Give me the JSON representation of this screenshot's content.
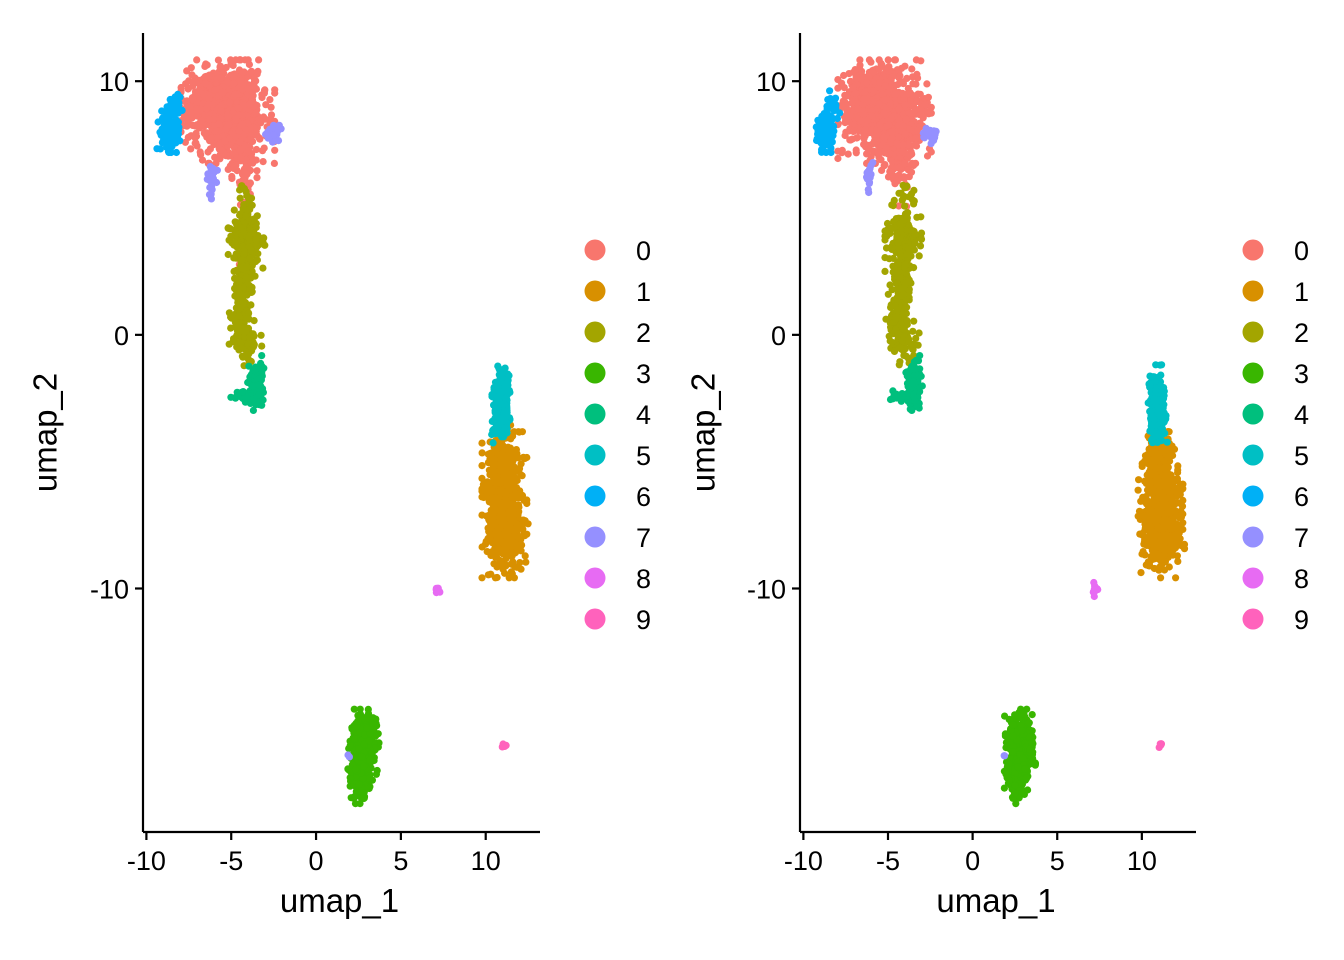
{
  "chart_data": [
    {
      "type": "scatter",
      "title": "",
      "xlabel": "umap_1",
      "ylabel": "umap_2",
      "xlim": [
        -10.2,
        13.2
      ],
      "ylim": [
        -19.6,
        11.9
      ],
      "xticks": [
        -10,
        -5,
        0,
        5,
        10
      ],
      "yticks": [
        -10,
        0,
        10
      ],
      "xtick_labels": [
        "-10",
        "-5",
        "0",
        "5",
        "10"
      ],
      "ytick_labels": [
        "-10",
        "0",
        "10"
      ],
      "legend_title": "",
      "legend_position": "right",
      "clusters": [
        {
          "name": "0",
          "color": "#F8766D",
          "blobs": [
            {
              "cx": -5.2,
              "cy": 8.8,
              "sx": 1.15,
              "sy": 0.85,
              "n": 700
            },
            {
              "cx": -6.3,
              "cy": 9.2,
              "sx": 0.6,
              "sy": 0.6,
              "n": 220
            },
            {
              "cx": -4.6,
              "cy": 7.8,
              "sx": 0.5,
              "sy": 0.7,
              "n": 160
            },
            {
              "cx": -4.2,
              "cy": 6.8,
              "sx": 0.3,
              "sy": 0.5,
              "n": 50
            },
            {
              "cx": -4.0,
              "cy": 4.5,
              "sx": 0.3,
              "sy": 1.0,
              "n": 8
            }
          ]
        },
        {
          "name": "1",
          "color": "#D89000",
          "blobs": [
            {
              "cx": 11.1,
              "cy": -6.7,
              "sx": 0.55,
              "sy": 1.2,
              "n": 520
            },
            {
              "cx": 11.0,
              "cy": -5.0,
              "sx": 0.35,
              "sy": 0.6,
              "n": 110
            },
            {
              "cx": 11.2,
              "cy": -7.9,
              "sx": 0.55,
              "sy": 0.45,
              "n": 150
            }
          ]
        },
        {
          "name": "2",
          "color": "#A3A500",
          "blobs": [
            {
              "cx": -4.1,
              "cy": 3.7,
              "sx": 0.45,
              "sy": 0.5,
              "n": 170
            },
            {
              "cx": -4.2,
              "cy": 2.3,
              "sx": 0.25,
              "sy": 0.7,
              "n": 110
            },
            {
              "cx": -4.4,
              "cy": 0.6,
              "sx": 0.3,
              "sy": 0.6,
              "n": 110
            },
            {
              "cx": -4.0,
              "cy": -0.4,
              "sx": 0.35,
              "sy": 0.4,
              "n": 40
            },
            {
              "cx": -4.1,
              "cy": 5.3,
              "sx": 0.3,
              "sy": 0.4,
              "n": 20
            }
          ]
        },
        {
          "name": "3",
          "color": "#39B600",
          "blobs": [
            {
              "cx": 2.8,
              "cy": -16.2,
              "sx": 0.38,
              "sy": 0.6,
              "n": 340
            },
            {
              "cx": 2.6,
              "cy": -17.4,
              "sx": 0.3,
              "sy": 0.45,
              "n": 140
            }
          ]
        },
        {
          "name": "4",
          "color": "#00BF7D",
          "blobs": [
            {
              "cx": -3.5,
              "cy": -1.9,
              "sx": 0.22,
              "sy": 0.45,
              "n": 130
            },
            {
              "cx": -4.3,
              "cy": -2.45,
              "sx": 0.3,
              "sy": 0.1,
              "n": 30
            }
          ]
        },
        {
          "name": "5",
          "color": "#00BFC4",
          "blobs": [
            {
              "cx": 10.9,
              "cy": -2.5,
              "sx": 0.22,
              "sy": 0.55,
              "n": 170
            },
            {
              "cx": 10.9,
              "cy": -3.6,
              "sx": 0.25,
              "sy": 0.3,
              "n": 60
            }
          ]
        },
        {
          "name": "6",
          "color": "#00B0F6",
          "blobs": [
            {
              "cx": -8.7,
              "cy": 8.1,
              "sx": 0.28,
              "sy": 0.38,
              "n": 130
            },
            {
              "cx": -8.3,
              "cy": 8.9,
              "sx": 0.2,
              "sy": 0.3,
              "n": 30
            }
          ]
        },
        {
          "name": "7",
          "color": "#9590FF",
          "blobs": [
            {
              "cx": -2.5,
              "cy": 7.9,
              "sx": 0.2,
              "sy": 0.15,
              "n": 35
            },
            {
              "cx": -6.1,
              "cy": 6.2,
              "sx": 0.15,
              "sy": 0.35,
              "n": 25
            },
            {
              "cx": 1.9,
              "cy": -16.6,
              "sx": 0.05,
              "sy": 0.05,
              "n": 2
            }
          ]
        },
        {
          "name": "8",
          "color": "#E76BF3",
          "blobs": [
            {
              "cx": 7.2,
              "cy": -10.05,
              "sx": 0.08,
              "sy": 0.12,
              "n": 12
            }
          ]
        },
        {
          "name": "9",
          "color": "#FF62BC",
          "blobs": [
            {
              "cx": 11.1,
              "cy": -16.2,
              "sx": 0.06,
              "sy": 0.06,
              "n": 6
            }
          ]
        }
      ]
    },
    {
      "type": "scatter",
      "title": "",
      "xlabel": "umap_1",
      "ylabel": "umap_2",
      "xlim": [
        -10.2,
        13.2
      ],
      "ylim": [
        -19.6,
        11.9
      ],
      "xticks": [
        -10,
        -5,
        0,
        5,
        10
      ],
      "yticks": [
        -10,
        0,
        10
      ],
      "xtick_labels": [
        "-10",
        "-5",
        "0",
        "5",
        "10"
      ],
      "ytick_labels": [
        "-10",
        "0",
        "10"
      ],
      "legend_title": "",
      "legend_position": "right",
      "clusters": [
        {
          "name": "0",
          "color": "#F8766D",
          "blobs": [
            {
              "cx": -5.2,
              "cy": 8.8,
              "sx": 1.15,
              "sy": 0.85,
              "n": 700
            },
            {
              "cx": -6.3,
              "cy": 9.2,
              "sx": 0.6,
              "sy": 0.6,
              "n": 220
            },
            {
              "cx": -4.6,
              "cy": 7.8,
              "sx": 0.5,
              "sy": 0.7,
              "n": 160
            },
            {
              "cx": -4.2,
              "cy": 6.8,
              "sx": 0.3,
              "sy": 0.5,
              "n": 50
            },
            {
              "cx": -4.0,
              "cy": 4.5,
              "sx": 0.3,
              "sy": 1.0,
              "n": 8
            }
          ]
        },
        {
          "name": "1",
          "color": "#D89000",
          "blobs": [
            {
              "cx": 11.1,
              "cy": -6.7,
              "sx": 0.55,
              "sy": 1.2,
              "n": 520
            },
            {
              "cx": 11.0,
              "cy": -5.0,
              "sx": 0.35,
              "sy": 0.6,
              "n": 110
            },
            {
              "cx": 11.2,
              "cy": -7.9,
              "sx": 0.55,
              "sy": 0.45,
              "n": 150
            }
          ]
        },
        {
          "name": "2",
          "color": "#A3A500",
          "blobs": [
            {
              "cx": -4.1,
              "cy": 3.7,
              "sx": 0.45,
              "sy": 0.5,
              "n": 170
            },
            {
              "cx": -4.2,
              "cy": 2.3,
              "sx": 0.25,
              "sy": 0.7,
              "n": 110
            },
            {
              "cx": -4.4,
              "cy": 0.6,
              "sx": 0.3,
              "sy": 0.6,
              "n": 110
            },
            {
              "cx": -4.0,
              "cy": -0.4,
              "sx": 0.35,
              "sy": 0.4,
              "n": 40
            },
            {
              "cx": -4.1,
              "cy": 5.3,
              "sx": 0.3,
              "sy": 0.4,
              "n": 20
            }
          ]
        },
        {
          "name": "3",
          "color": "#39B600",
          "blobs": [
            {
              "cx": 2.8,
              "cy": -16.2,
              "sx": 0.38,
              "sy": 0.6,
              "n": 340
            },
            {
              "cx": 2.6,
              "cy": -17.4,
              "sx": 0.3,
              "sy": 0.45,
              "n": 140
            }
          ]
        },
        {
          "name": "4",
          "color": "#00BF7D",
          "blobs": [
            {
              "cx": -3.5,
              "cy": -1.9,
              "sx": 0.22,
              "sy": 0.45,
              "n": 130
            },
            {
              "cx": -4.3,
              "cy": -2.45,
              "sx": 0.3,
              "sy": 0.1,
              "n": 30
            }
          ]
        },
        {
          "name": "5",
          "color": "#00BFC4",
          "blobs": [
            {
              "cx": 10.9,
              "cy": -2.5,
              "sx": 0.22,
              "sy": 0.55,
              "n": 170
            },
            {
              "cx": 10.9,
              "cy": -3.6,
              "sx": 0.25,
              "sy": 0.3,
              "n": 60
            }
          ]
        },
        {
          "name": "6",
          "color": "#00B0F6",
          "blobs": [
            {
              "cx": -8.7,
              "cy": 8.1,
              "sx": 0.28,
              "sy": 0.38,
              "n": 130
            },
            {
              "cx": -8.3,
              "cy": 8.9,
              "sx": 0.2,
              "sy": 0.3,
              "n": 30
            }
          ]
        },
        {
          "name": "7",
          "color": "#9590FF",
          "blobs": [
            {
              "cx": -2.5,
              "cy": 7.9,
              "sx": 0.2,
              "sy": 0.15,
              "n": 35
            },
            {
              "cx": -6.1,
              "cy": 6.2,
              "sx": 0.15,
              "sy": 0.35,
              "n": 25
            },
            {
              "cx": 1.9,
              "cy": -16.6,
              "sx": 0.05,
              "sy": 0.05,
              "n": 2
            }
          ]
        },
        {
          "name": "8",
          "color": "#E76BF3",
          "blobs": [
            {
              "cx": 7.2,
              "cy": -10.05,
              "sx": 0.08,
              "sy": 0.12,
              "n": 12
            }
          ]
        },
        {
          "name": "9",
          "color": "#FF62BC",
          "blobs": [
            {
              "cx": 11.1,
              "cy": -16.2,
              "sx": 0.06,
              "sy": 0.06,
              "n": 6
            }
          ]
        }
      ]
    }
  ]
}
